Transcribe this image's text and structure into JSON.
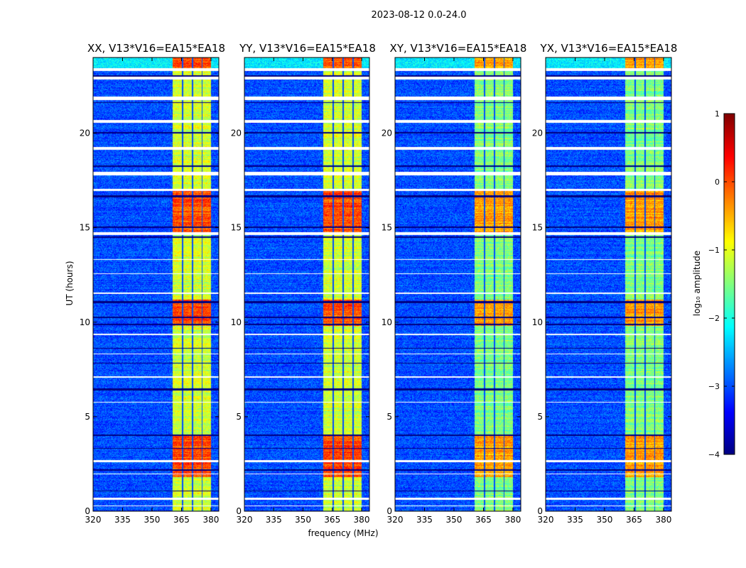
{
  "suptitle": "2023-08-12 0.0-24.0",
  "chart_data": {
    "type": "heatmap",
    "panels": [
      {
        "title": "XX, V13*V16=EA15*EA18",
        "band_level": 0.0
      },
      {
        "title": "YY, V13*V16=EA15*EA18",
        "band_level": 0.0
      },
      {
        "title": "XY, V13*V16=EA15*EA18",
        "band_level": -0.4
      },
      {
        "title": "YX, V13*V16=EA15*EA18",
        "band_level": -0.4
      }
    ],
    "xlabel": "frequency (MHz)",
    "ylabel": "UT (hours)",
    "xlim": [
      320,
      384
    ],
    "ylim": [
      0,
      24
    ],
    "xticks": [
      "320",
      "335",
      "350",
      "365",
      "380"
    ],
    "xtick_values": [
      320,
      335,
      350,
      365,
      380
    ],
    "yticks": [
      "0",
      "5",
      "10",
      "15",
      "20"
    ],
    "ytick_values": [
      0,
      5,
      10,
      15,
      20
    ],
    "background_level": -3.0,
    "band_mhz": [
      360.5,
      380
    ],
    "band_gaps_mhz": [
      365.5,
      370.5,
      375.5
    ],
    "flagged_hours_white": [
      [
        23.3,
        23.45
      ],
      [
        22.85,
        23.0
      ],
      [
        21.75,
        21.95
      ],
      [
        20.55,
        20.7
      ],
      [
        19.1,
        19.25
      ],
      [
        17.75,
        17.95
      ],
      [
        16.95,
        17.05
      ],
      [
        14.6,
        14.75
      ],
      [
        13.3,
        13.35
      ],
      [
        12.55,
        12.6
      ],
      [
        11.5,
        11.55
      ],
      [
        9.3,
        9.4
      ],
      [
        8.3,
        8.35
      ],
      [
        7.05,
        7.15
      ],
      [
        5.75,
        5.8
      ],
      [
        2.6,
        2.7
      ],
      [
        1.95,
        2.0
      ],
      [
        0.6,
        0.7
      ],
      [
        0.25,
        0.3
      ]
    ],
    "flagged_hours_black": [
      [
        23.0,
        23.05
      ],
      [
        21.6,
        21.65
      ],
      [
        20.0,
        20.05
      ],
      [
        18.2,
        18.3
      ],
      [
        16.6,
        16.7
      ],
      [
        15.0,
        15.05
      ],
      [
        14.45,
        14.55
      ],
      [
        11.0,
        11.1
      ],
      [
        10.2,
        10.3
      ],
      [
        9.85,
        9.9
      ],
      [
        8.6,
        8.65
      ],
      [
        7.8,
        7.85
      ],
      [
        6.4,
        6.5
      ],
      [
        4.0,
        4.05
      ],
      [
        3.3,
        3.35
      ],
      [
        2.15,
        2.2
      ],
      [
        1.05,
        1.1
      ]
    ],
    "bright_hours": [
      [
        23.4,
        24
      ],
      [
        14.75,
        17.0
      ],
      [
        9.8,
        11.2
      ],
      [
        1.8,
        4.0
      ]
    ],
    "colorbar": {
      "label": "log₁₀ amplitude",
      "range": [
        -4,
        1
      ],
      "ticks": [
        "−4",
        "−3",
        "−2",
        "−1",
        "0",
        "1"
      ],
      "tick_values": [
        -4,
        -3,
        -2,
        -1,
        0,
        1
      ],
      "colormap": "jet"
    }
  }
}
